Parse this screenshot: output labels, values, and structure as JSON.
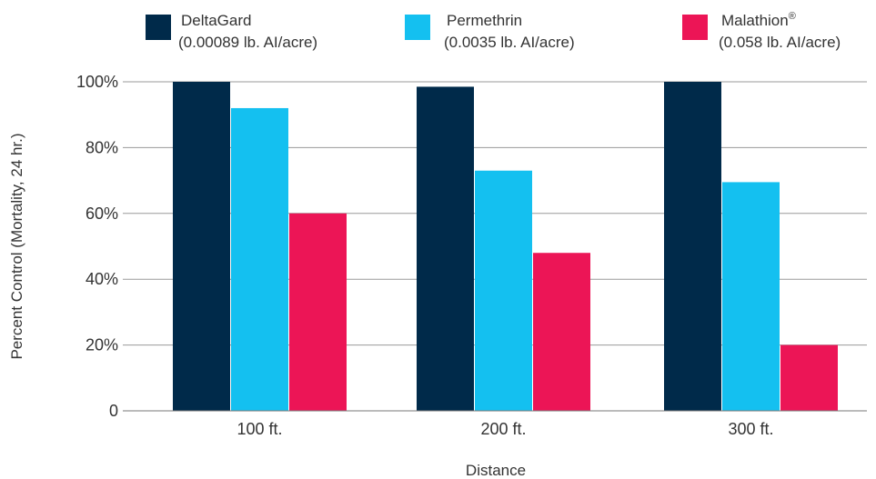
{
  "chart_data": {
    "type": "bar",
    "categories": [
      "100 ft.",
      "200 ft.",
      "300 ft."
    ],
    "series": [
      {
        "name": "DeltaGard",
        "sub": "(0.00089 lb. AI/acre)",
        "color": "#002a4a",
        "values": [
          100,
          98.5,
          100
        ]
      },
      {
        "name": "Permethrin",
        "sub": "(0.0035 lb. AI/acre)",
        "color": "#14c0f0",
        "values": [
          92,
          73,
          69.5
        ]
      },
      {
        "name": "Malathion",
        "sup": "®",
        "sub": "(0.058 lb. AI/acre)",
        "color": "#ec1556",
        "values": [
          60,
          48,
          20
        ]
      }
    ],
    "xlabel": "Distance",
    "ylabel": "Percent Control (Mortality, 24 hr.)",
    "ylim": [
      0,
      100
    ],
    "yticks": [
      0,
      20,
      40,
      60,
      80,
      100
    ],
    "ytick_labels": [
      "0",
      "20%",
      "40%",
      "60%",
      "80%",
      "100%"
    ],
    "grid": true,
    "legend_position": "top"
  }
}
